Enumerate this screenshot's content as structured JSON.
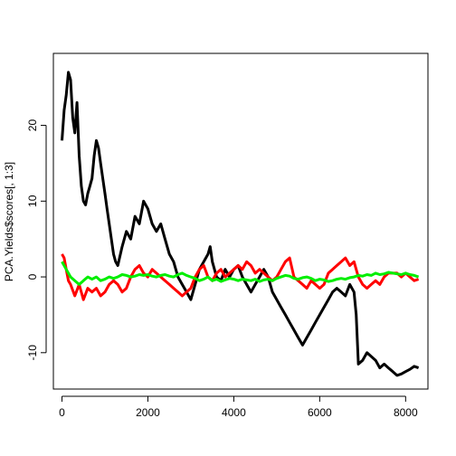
{
  "chart_data": {
    "type": "line",
    "title": "",
    "xlabel": "",
    "ylabel": "PCA.Yields$scores[, 1:3]",
    "xlim": [
      -200,
      8520
    ],
    "ylim": [
      -14.8,
      29.5
    ],
    "x_ticks": [
      0,
      2000,
      4000,
      6000,
      8000
    ],
    "x_tick_labels": [
      "0",
      "2000",
      "4000",
      "6000",
      "8000"
    ],
    "y_ticks": [
      -10,
      0,
      10,
      20
    ],
    "y_tick_labels": [
      "-10",
      "0",
      "10",
      "20"
    ],
    "grid": false,
    "legend": "none",
    "series": [
      {
        "color": "#000000",
        "x": [
          0,
          50,
          100,
          150,
          200,
          250,
          300,
          350,
          400,
          450,
          500,
          550,
          600,
          650,
          700,
          750,
          800,
          850,
          900,
          950,
          1000,
          1050,
          1100,
          1150,
          1200,
          1250,
          1300,
          1400,
          1500,
          1600,
          1700,
          1800,
          1900,
          2000,
          2100,
          2200,
          2300,
          2400,
          2500,
          2600,
          2700,
          2800,
          2900,
          3000,
          3100,
          3200,
          3300,
          3400,
          3450,
          3500,
          3600,
          3700,
          3800,
          3900,
          4000,
          4100,
          4200,
          4300,
          4400,
          4500,
          4600,
          4700,
          4800,
          4900,
          5000,
          5100,
          5200,
          5300,
          5400,
          5500,
          5600,
          5700,
          5800,
          5900,
          6000,
          6100,
          6200,
          6300,
          6400,
          6500,
          6600,
          6700,
          6800,
          6850,
          6900,
          7000,
          7100,
          7200,
          7300,
          7400,
          7500,
          7600,
          7700,
          7800,
          7900,
          8000,
          8100,
          8200,
          8300
        ],
        "y": [
          18,
          22,
          24,
          27,
          26,
          21,
          19,
          23,
          16,
          12,
          10,
          9.5,
          11,
          12,
          13,
          16,
          18,
          17,
          15,
          13,
          11,
          9,
          7,
          5,
          3,
          2,
          1.5,
          4,
          6,
          5,
          8,
          7,
          10,
          9,
          7,
          6,
          7,
          5,
          3,
          2,
          0,
          -1,
          -2,
          -3,
          -1,
          1,
          2,
          3,
          4,
          2,
          0,
          -0.5,
          1,
          0,
          1,
          1.5,
          0,
          -1,
          -2,
          -1,
          0,
          1,
          0,
          -2,
          -3,
          -4,
          -5,
          -6,
          -7,
          -8,
          -9,
          -8,
          -7,
          -6,
          -5,
          -4,
          -3,
          -2,
          -1.5,
          -2,
          -2.5,
          -1,
          -2,
          -5,
          -11.5,
          -11,
          -10,
          -10.5,
          -11,
          -12,
          -11.5,
          -12,
          -12.5,
          -13,
          -12.8,
          -12.5,
          -12.2,
          -11.8,
          -12
        ]
      },
      {
        "color": "#ff0000",
        "x": [
          0,
          50,
          100,
          150,
          200,
          300,
          400,
          500,
          600,
          700,
          800,
          900,
          1000,
          1100,
          1200,
          1300,
          1400,
          1500,
          1600,
          1700,
          1800,
          1900,
          2000,
          2100,
          2200,
          2300,
          2400,
          2500,
          2600,
          2700,
          2800,
          2900,
          3000,
          3100,
          3200,
          3300,
          3400,
          3500,
          3600,
          3700,
          3800,
          3900,
          4000,
          4100,
          4200,
          4300,
          4400,
          4500,
          4600,
          4700,
          4800,
          4900,
          5000,
          5100,
          5200,
          5300,
          5400,
          5500,
          5600,
          5700,
          5800,
          5900,
          6000,
          6100,
          6200,
          6300,
          6400,
          6500,
          6600,
          6700,
          6800,
          6900,
          7000,
          7100,
          7200,
          7300,
          7400,
          7500,
          7600,
          7700,
          7800,
          7900,
          8000,
          8100,
          8200,
          8300
        ],
        "y": [
          3,
          2.5,
          1,
          -0.5,
          -1,
          -2.5,
          -1,
          -3,
          -1.5,
          -2,
          -1.5,
          -2.5,
          -2,
          -1,
          -0.5,
          -1,
          -2,
          -1.5,
          0,
          1,
          1.5,
          0.5,
          0,
          1,
          0.5,
          0,
          -0.5,
          -1,
          -1.5,
          -2,
          -2.5,
          -2,
          -1.5,
          0,
          1,
          1.5,
          0,
          -0.5,
          0.5,
          1,
          0,
          0.5,
          1,
          1.5,
          1,
          2,
          1.5,
          0.5,
          1,
          0.5,
          0,
          -0.5,
          0,
          1,
          2,
          2.5,
          0,
          -0.5,
          -1,
          -1.5,
          -0.5,
          -1,
          -1.5,
          -1,
          0.5,
          1,
          1.5,
          2,
          2.5,
          1.5,
          2,
          0,
          -1,
          -1.5,
          -1,
          -0.5,
          -1,
          0,
          0.5,
          0.5,
          0.5,
          0,
          0.5,
          0,
          -0.5,
          -0.3
        ]
      },
      {
        "color": "#00ee00",
        "x": [
          0,
          50,
          100,
          150,
          200,
          300,
          400,
          500,
          600,
          700,
          800,
          900,
          1000,
          1100,
          1200,
          1300,
          1400,
          1500,
          1600,
          1700,
          1800,
          1900,
          2000,
          2100,
          2200,
          2300,
          2400,
          2500,
          2600,
          2700,
          2800,
          2900,
          3000,
          3100,
          3200,
          3300,
          3400,
          3500,
          3600,
          3700,
          3800,
          3900,
          4000,
          4100,
          4200,
          4300,
          4400,
          4500,
          4600,
          4700,
          4800,
          4900,
          5000,
          5100,
          5200,
          5300,
          5400,
          5500,
          5600,
          5700,
          5800,
          5900,
          6000,
          6100,
          6200,
          6300,
          6400,
          6500,
          6600,
          6700,
          6800,
          6900,
          7000,
          7100,
          7200,
          7300,
          7400,
          7500,
          7600,
          7700,
          7800,
          7900,
          8000,
          8100,
          8200,
          8300
        ],
        "y": [
          2,
          1.5,
          1,
          0.5,
          0,
          -0.5,
          -1,
          -0.5,
          0,
          -0.3,
          0,
          -0.5,
          -0.3,
          0,
          -0.2,
          0,
          0.3,
          0.2,
          0,
          0.1,
          0.3,
          0.2,
          0.3,
          0.1,
          0,
          0.2,
          0.3,
          0.1,
          0,
          0.3,
          0.5,
          0.2,
          0,
          -0.2,
          -0.5,
          -0.3,
          0,
          -0.5,
          -0.3,
          -0.6,
          -0.4,
          -0.2,
          -0.3,
          -0.5,
          -0.3,
          -0.4,
          -0.5,
          -0.3,
          -0.6,
          -0.4,
          -0.3,
          -0.5,
          -0.2,
          0,
          0.2,
          0.1,
          -0.2,
          -0.3,
          -0.1,
          0,
          -0.2,
          -0.5,
          -0.3,
          -0.4,
          -0.6,
          -0.5,
          -0.3,
          -0.2,
          -0.3,
          -0.1,
          0,
          0.2,
          0.1,
          0.3,
          0.2,
          0.5,
          0.3,
          0.4,
          0.6,
          0.5,
          0.4,
          0.3,
          0.5,
          0.3,
          0.2,
          0
        ]
      }
    ]
  }
}
